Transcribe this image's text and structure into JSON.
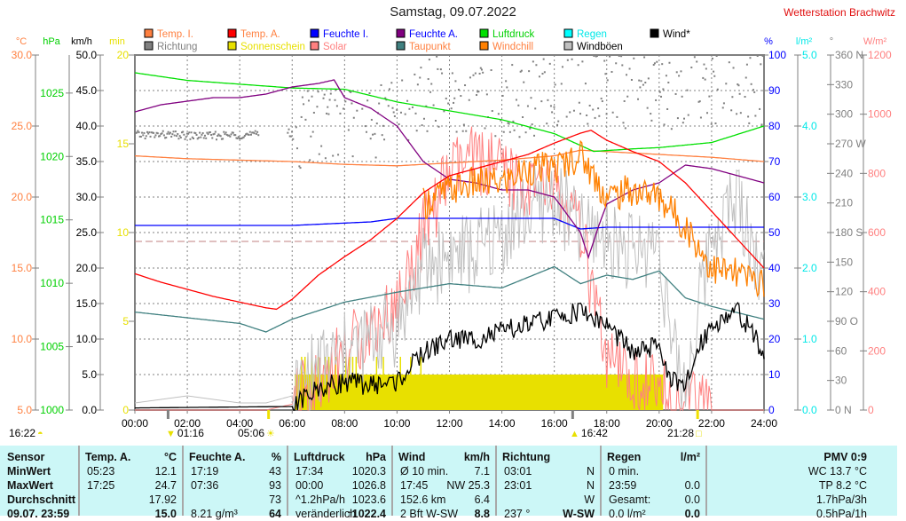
{
  "header": {
    "title": "Samstag, 09.07.2022",
    "station": "Wetterstation Brachwitz"
  },
  "legend": [
    {
      "label": "Temp. I.",
      "color": "#ff8040",
      "text_color": "#ff8040"
    },
    {
      "label": "Temp. A.",
      "color": "#ff0000",
      "text_color": "#ff8040"
    },
    {
      "label": "Feuchte I.",
      "color": "#0000ff",
      "text_color": "#0000ff"
    },
    {
      "label": "Feuchte A.",
      "color": "#800080",
      "text_color": "#0000ff"
    },
    {
      "label": "Luftdruck",
      "color": "#00e000",
      "text_color": "#00d000"
    },
    {
      "label": "Regen",
      "color": "#00ffff",
      "text_color": "#00e8e8"
    },
    {
      "label": "Wind*",
      "color": "#000000",
      "text_color": "#000000"
    },
    {
      "label": "Richtung",
      "color": "#808080",
      "text_color": "#808080"
    },
    {
      "label": "Sonnenschein",
      "color": "#e8e000",
      "text_color": "#e8e000"
    },
    {
      "label": "Solar",
      "color": "#ff8080",
      "text_color": "#ff8080"
    },
    {
      "label": "Taupunkt",
      "color": "#408080",
      "text_color": "#ff8040"
    },
    {
      "label": "Windchill",
      "color": "#ff8000",
      "text_color": "#ff8040"
    },
    {
      "label": "Windböen",
      "color": "#c0c0c0",
      "text_color": "#000000"
    }
  ],
  "chart_data": {
    "type": "line",
    "title": "Samstag, 09.07.2022",
    "x_ticks": [
      "00:00",
      "02:00",
      "04:00",
      "06:00",
      "08:00",
      "10:00",
      "12:00",
      "14:00",
      "16:00",
      "18:00",
      "20:00",
      "22:00",
      "24:00"
    ],
    "x_range_hours": [
      0,
      24
    ],
    "axes": [
      {
        "id": "temp",
        "unit": "°C",
        "color": "#ff8040",
        "range": [
          5,
          30
        ],
        "ticks": [
          "30.0",
          "25.0",
          "20.0",
          "15.0",
          "10.0",
          "5.0"
        ],
        "tick_values": [
          30,
          25,
          20,
          15,
          10,
          5
        ]
      },
      {
        "id": "press",
        "unit": "hPa",
        "color": "#00d000",
        "range": [
          1000,
          1028
        ],
        "ticks": [
          "1025",
          "1020",
          "1015",
          "1010",
          "1005",
          "1000"
        ],
        "tick_values": [
          1025,
          1020,
          1015,
          1010,
          1005,
          1000
        ]
      },
      {
        "id": "wind",
        "unit": "km/h",
        "color": "#000000",
        "range": [
          0,
          50
        ],
        "ticks": [
          "50.0",
          "45.0",
          "40.0",
          "35.0",
          "30.0",
          "25.0",
          "20.0",
          "15.0",
          "10.0",
          "5.0",
          "0.0"
        ],
        "tick_values": [
          50,
          45,
          40,
          35,
          30,
          25,
          20,
          15,
          10,
          5,
          0
        ]
      },
      {
        "id": "sun",
        "unit": "min",
        "color": "#e8e000",
        "range": [
          0,
          20
        ],
        "ticks": [
          "20",
          "15",
          "10",
          "5",
          "0"
        ],
        "tick_values": [
          20,
          15,
          10,
          5,
          0
        ]
      },
      {
        "id": "hum",
        "unit": "%",
        "color": "#0000ff",
        "range": [
          0,
          100
        ],
        "ticks": [
          "100",
          "90",
          "80",
          "70",
          "60",
          "50",
          "40",
          "30",
          "20",
          "10",
          "0"
        ],
        "tick_values": [
          100,
          90,
          80,
          70,
          60,
          50,
          40,
          30,
          20,
          10,
          0
        ]
      },
      {
        "id": "rain",
        "unit": "l/m²",
        "color": "#00e8e8",
        "range": [
          0,
          5
        ],
        "ticks": [
          "5.0",
          "4.0",
          "3.0",
          "2.0",
          "1.0",
          "0.0"
        ],
        "tick_values": [
          5,
          4,
          3,
          2,
          1,
          0
        ]
      },
      {
        "id": "dir",
        "unit": "°",
        "color": "#808080",
        "range": [
          0,
          360
        ],
        "ticks": [
          "360 N",
          "330",
          "300",
          "270 W",
          "240",
          "210",
          "180 S",
          "150",
          "120",
          "90 O",
          "60",
          "30",
          "0 N"
        ],
        "tick_values": [
          360,
          330,
          300,
          270,
          240,
          210,
          180,
          150,
          120,
          90,
          60,
          30,
          0
        ]
      },
      {
        "id": "solar",
        "unit": "W/m²",
        "color": "#ff8080",
        "range": [
          0,
          1200
        ],
        "ticks": [
          "1200",
          "1000",
          "800",
          "600",
          "400",
          "200",
          "0"
        ],
        "tick_values": [
          1200,
          1000,
          800,
          600,
          400,
          200,
          0
        ]
      }
    ],
    "series": [
      {
        "name": "Temp. I.",
        "axis": "temp",
        "color": "#ff8040",
        "x": [
          0,
          2,
          4,
          6,
          8,
          10,
          12,
          14,
          16,
          17,
          18,
          20,
          22,
          24
        ],
        "y": [
          22.9,
          22.7,
          22.6,
          22.5,
          22.3,
          22.2,
          22.4,
          22.6,
          22.9,
          23.3,
          23.2,
          23.0,
          22.8,
          22.5
        ]
      },
      {
        "name": "Temp. A.",
        "axis": "temp",
        "color": "#ff0000",
        "x": [
          0,
          1,
          2,
          3,
          4,
          5,
          5.4,
          6,
          7,
          8,
          9,
          10,
          11,
          12,
          13,
          14,
          15,
          16,
          17,
          17.4,
          18,
          19,
          20,
          21,
          22,
          23,
          24
        ],
        "y": [
          14.6,
          14.0,
          13.5,
          13.0,
          12.6,
          12.2,
          12.1,
          12.8,
          14.5,
          15.8,
          17.0,
          18.5,
          20.3,
          21.5,
          22.0,
          22.5,
          23.0,
          23.8,
          24.5,
          24.7,
          24.0,
          23.2,
          22.5,
          21.0,
          19.0,
          17.0,
          15.0
        ]
      },
      {
        "name": "Feuchte I.",
        "axis": "hum",
        "color": "#0000ff",
        "x": [
          0,
          6,
          9,
          10,
          12,
          14,
          16,
          17,
          18,
          20,
          22,
          24
        ],
        "y": [
          52,
          52,
          53,
          54,
          54,
          54,
          54,
          51,
          51.5,
          51.5,
          51.5,
          51.5
        ]
      },
      {
        "name": "Feuchte A.",
        "axis": "hum",
        "color": "#800080",
        "x": [
          0,
          1,
          2,
          3,
          4,
          5,
          6,
          7,
          7.6,
          8,
          9,
          10,
          11,
          12,
          13,
          14,
          15,
          16,
          17,
          17.3,
          17.7,
          18,
          19,
          20,
          21,
          22,
          23,
          24
        ],
        "y": [
          84,
          86,
          87,
          88,
          88,
          89,
          91,
          92,
          93,
          88,
          85,
          80,
          70,
          65,
          64,
          62,
          62,
          60,
          50,
          43,
          52,
          58,
          62,
          64,
          69,
          68,
          66,
          64
        ]
      },
      {
        "name": "Luftdruck",
        "axis": "press",
        "color": "#00e000",
        "x": [
          0,
          2,
          4,
          6,
          8,
          10,
          12,
          14,
          16,
          17.5,
          19,
          20,
          22,
          24
        ],
        "y": [
          1026.6,
          1026.0,
          1025.7,
          1025.4,
          1025.3,
          1024.3,
          1023.6,
          1022.9,
          1021.8,
          1020.4,
          1020.6,
          1020.7,
          1021.1,
          1022.4
        ]
      },
      {
        "name": "Taupunkt",
        "axis": "temp",
        "color": "#408080",
        "x": [
          0,
          2,
          4,
          5,
          6,
          8,
          10,
          12,
          14,
          16,
          17,
          18,
          19,
          20,
          21,
          22,
          24
        ],
        "y": [
          11.9,
          11.5,
          11.1,
          10.5,
          11.4,
          12.6,
          13.3,
          13.9,
          13.6,
          15.1,
          13.9,
          14.5,
          14.2,
          14.8,
          12.9,
          12.3,
          11.4
        ]
      },
      {
        "name": "Windchill",
        "axis": "temp",
        "color": "#ff8000",
        "x": [
          11,
          12,
          13,
          14,
          15,
          16,
          17,
          18,
          19,
          20,
          21,
          22,
          23,
          24
        ],
        "y": [
          19.5,
          20.5,
          21.0,
          21.0,
          22.0,
          22.0,
          23.0,
          20.0,
          20.5,
          20.0,
          18.0,
          15.0,
          14.5,
          14.0
        ]
      },
      {
        "name": "Windböen",
        "axis": "wind",
        "color": "#c0c0c0",
        "x": [
          0,
          2,
          4,
          5,
          6,
          7,
          8,
          9,
          10,
          11,
          12,
          13,
          14,
          15,
          16,
          17,
          18,
          19,
          20,
          20.5,
          21,
          22,
          23,
          24
        ],
        "y": [
          1,
          2,
          1,
          1,
          2,
          6,
          8,
          10,
          12,
          20,
          22,
          22,
          25,
          28,
          30,
          25,
          25,
          22,
          24,
          8,
          3,
          25,
          30,
          18
        ]
      },
      {
        "name": "Wind*",
        "axis": "wind",
        "color": "#000000",
        "x": [
          0,
          6,
          7,
          8,
          9,
          10,
          11,
          12,
          13,
          14,
          15,
          16,
          17,
          18,
          19,
          20,
          20.5,
          21,
          21.5,
          22,
          23,
          24
        ],
        "y": [
          0.3,
          0.5,
          3,
          4,
          3.5,
          4,
          8,
          10,
          10,
          11,
          12,
          13,
          14,
          12,
          8,
          9,
          4,
          3,
          9,
          12,
          14,
          8
        ]
      },
      {
        "name": "Solar",
        "axis": "solar",
        "color": "#ff8080",
        "x": [
          0,
          5,
          6,
          7,
          8,
          9,
          10,
          11,
          12,
          13,
          14,
          15,
          16,
          17,
          18,
          19,
          20,
          21,
          22,
          24
        ],
        "y": [
          0,
          0,
          20,
          100,
          200,
          280,
          350,
          600,
          800,
          850,
          800,
          750,
          750,
          600,
          150,
          100,
          60,
          20,
          0,
          0
        ]
      },
      {
        "name": "Richtung",
        "axis": "dir",
        "color": "#808080",
        "type": "scatter",
        "x": [
          0,
          1,
          2,
          3,
          4,
          5,
          6,
          7,
          8,
          9,
          10,
          11,
          12,
          13,
          14,
          15,
          16,
          17,
          18,
          19,
          20,
          21,
          22,
          23,
          24
        ],
        "y": [
          280,
          280,
          279,
          279,
          280,
          280,
          282,
          290,
          300,
          290,
          300,
          320,
          320,
          320,
          310,
          315,
          320,
          330,
          330,
          320,
          330,
          320,
          325,
          330,
          320
        ]
      },
      {
        "name": "Sonnenschein",
        "axis": "sun",
        "color": "#e8e000",
        "type": "bar",
        "start": 6.1,
        "end": 20.15,
        "value": 2.0
      }
    ],
    "reference_line_percent": 47.5
  },
  "astro": {
    "moon_left": "16:22",
    "moonset": "01:16",
    "sunrise": "05:06",
    "moonrise": "16:42",
    "sunset": "21:28"
  },
  "table": {
    "sensor": {
      "header": "Sensor",
      "rows": [
        "MinWert",
        "MaxWert",
        "Durchschnitt",
        "09.07. 23:59"
      ]
    },
    "columns": [
      {
        "title": "Temp. A.",
        "unit": "°C",
        "rows": [
          [
            "05:23",
            "12.1"
          ],
          [
            "17:25",
            "24.7"
          ],
          [
            "",
            "17.92"
          ],
          [
            "",
            "15.0"
          ]
        ]
      },
      {
        "title": "Feuchte A.",
        "unit": "%",
        "rows": [
          [
            "17:19",
            "43"
          ],
          [
            "07:36",
            "93"
          ],
          [
            "",
            "73"
          ],
          [
            "8.21 g/m³",
            "64"
          ]
        ]
      },
      {
        "title": "Luftdruck",
        "unit": "hPa",
        "rows": [
          [
            "17:34",
            "1020.3"
          ],
          [
            "00:00",
            "1026.8"
          ],
          [
            "^1.2hPa/h",
            "1023.6"
          ],
          [
            "veränderlich",
            "↑1022.4"
          ]
        ]
      },
      {
        "title": "Wind",
        "unit": "km/h",
        "rows": [
          [
            "Ø 10 min.",
            "7.1"
          ],
          [
            "17:45",
            "NW 25.3"
          ],
          [
            "152.6 km",
            "6.4"
          ],
          [
            "2 Bft W-SW",
            "8.8"
          ]
        ]
      },
      {
        "title": "Richtung",
        "unit": "",
        "rows": [
          [
            "03:01",
            "N"
          ],
          [
            "23:01",
            "N"
          ],
          [
            "",
            "W"
          ],
          [
            "237 °",
            "W-SW"
          ]
        ]
      },
      {
        "title": "Regen",
        "unit": "l/m²",
        "rows": [
          [
            "0 min.",
            ""
          ],
          [
            "23:59",
            "0.0"
          ],
          [
            "Gesamt:",
            "0.0"
          ],
          [
            "0.0 l/m²",
            "0.0"
          ]
        ]
      }
    ],
    "pmv": {
      "header": "PMV 0:9",
      "rows": [
        "WC 13.7 °C",
        "TP 8.2 °C",
        "1.7hPa/3h",
        "0.5hPa/1h"
      ]
    }
  }
}
